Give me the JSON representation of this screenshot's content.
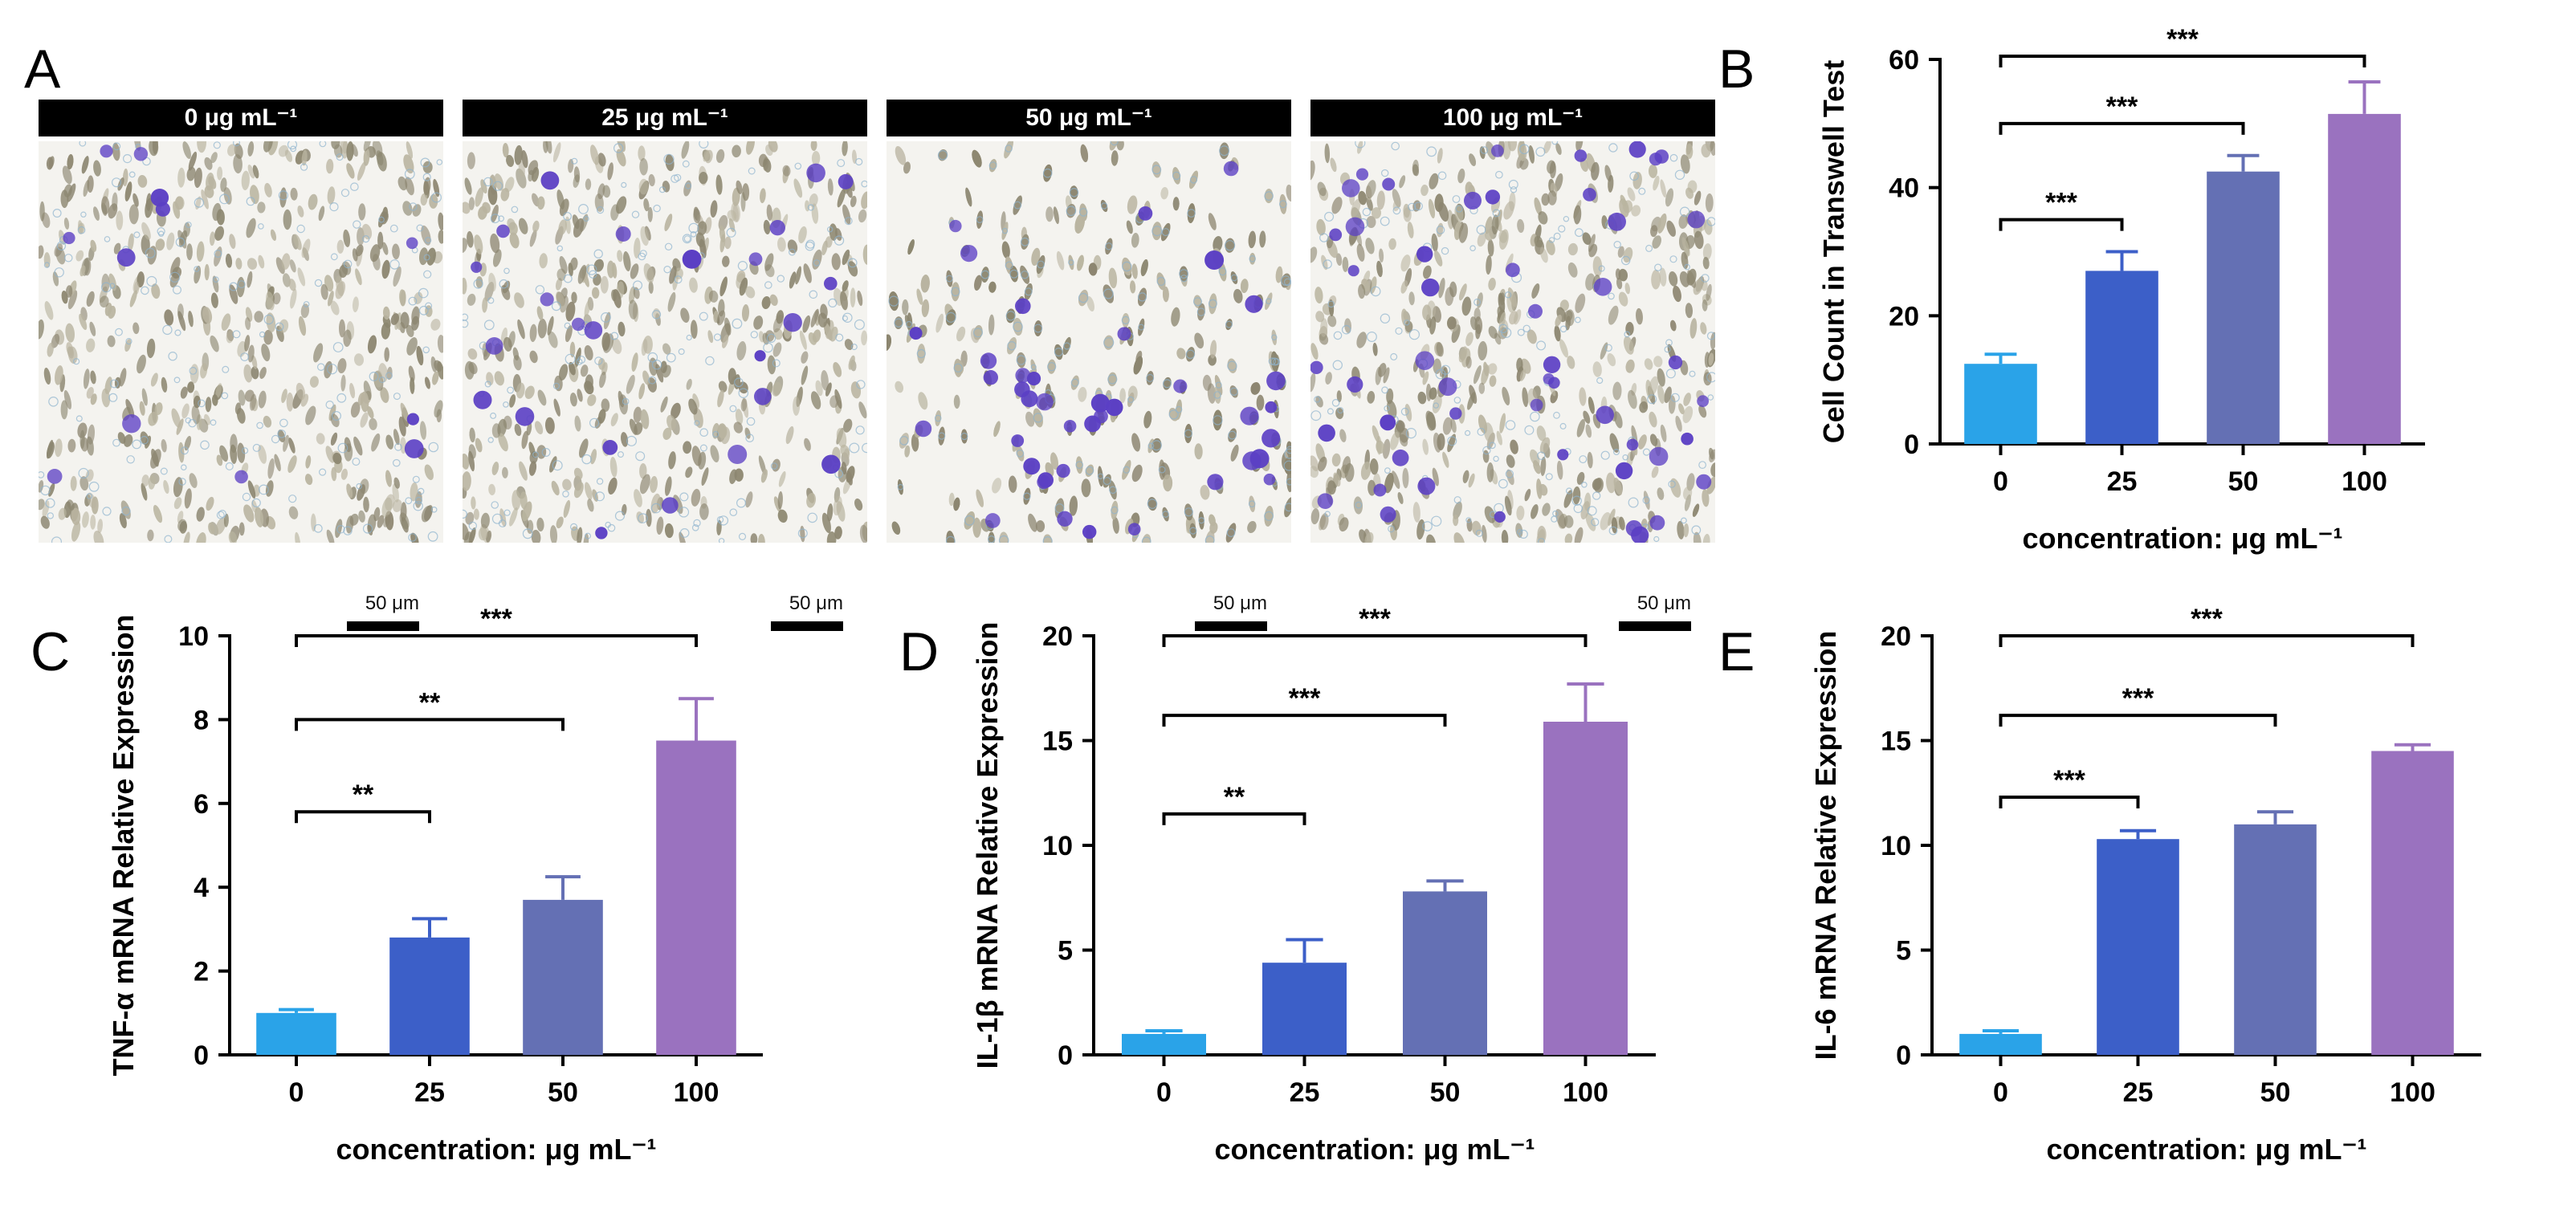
{
  "panels": {
    "A": {
      "letter": "A",
      "headers": [
        "0 μg mL⁻¹",
        "25 μg mL⁻¹",
        "50 μg mL⁻¹",
        "100 μg mL⁻¹"
      ],
      "scalebar": "50 μm"
    },
    "B": {
      "letter": "B"
    },
    "C": {
      "letter": "C"
    },
    "D": {
      "letter": "D"
    },
    "E": {
      "letter": "E"
    }
  },
  "colors": {
    "bar0": "#2aa3e8",
    "bar25": "#3c5fc8",
    "bar50": "#6470b4",
    "bar100": "#9a72bf",
    "cell": "#5b3fc4",
    "debris": "#8c8670"
  },
  "chart_data": [
    {
      "panel": "B",
      "type": "bar",
      "categories": [
        "0",
        "25",
        "50",
        "100"
      ],
      "values": [
        12.5,
        27,
        42.5,
        51.5
      ],
      "errors": [
        1.5,
        3,
        2.5,
        5
      ],
      "xlabel": "concentration: μg mL⁻¹",
      "ylabel": "Cell Count in Transwell Test",
      "ylim": [
        0,
        60
      ],
      "yticks": [
        "0",
        "20",
        "40",
        "60"
      ],
      "brackets": [
        {
          "from": 0,
          "to": 1,
          "y": 35,
          "label": "***"
        },
        {
          "from": 0,
          "to": 2,
          "y": 50,
          "label": "***"
        },
        {
          "from": 0,
          "to": 3,
          "y": 60.5,
          "label": "***"
        }
      ]
    },
    {
      "panel": "C",
      "type": "bar",
      "categories": [
        "0",
        "25",
        "50",
        "100"
      ],
      "values": [
        1.0,
        2.8,
        3.7,
        7.5
      ],
      "errors": [
        0.08,
        0.45,
        0.55,
        1.0
      ],
      "xlabel": "concentration: μg mL⁻¹",
      "ylabel": "TNF-α mRNA Relative Expression",
      "ylim": [
        0,
        10
      ],
      "yticks": [
        "0",
        "2",
        "4",
        "6",
        "8",
        "10"
      ],
      "brackets": [
        {
          "from": 0,
          "to": 1,
          "y": 5.8,
          "label": "**"
        },
        {
          "from": 0,
          "to": 2,
          "y": 8.0,
          "label": "**"
        },
        {
          "from": 0,
          "to": 3,
          "y": 10.0,
          "label": "***"
        }
      ]
    },
    {
      "panel": "D",
      "type": "bar",
      "categories": [
        "0",
        "25",
        "50",
        "100"
      ],
      "values": [
        1.0,
        4.4,
        7.8,
        15.9
      ],
      "errors": [
        0.15,
        1.1,
        0.5,
        1.8
      ],
      "xlabel": "concentration: μg mL⁻¹",
      "ylabel": "IL-1β mRNA Relative Expression",
      "ylim": [
        0,
        20
      ],
      "yticks": [
        "0",
        "5",
        "10",
        "15",
        "20"
      ],
      "brackets": [
        {
          "from": 0,
          "to": 1,
          "y": 11.5,
          "label": "**"
        },
        {
          "from": 0,
          "to": 2,
          "y": 16.2,
          "label": "***"
        },
        {
          "from": 0,
          "to": 3,
          "y": 20.0,
          "label": "***"
        }
      ]
    },
    {
      "panel": "E",
      "type": "bar",
      "categories": [
        "0",
        "25",
        "50",
        "100"
      ],
      "values": [
        1.0,
        10.3,
        11.0,
        14.5
      ],
      "errors": [
        0.15,
        0.4,
        0.6,
        0.3
      ],
      "xlabel": "concentration: μg mL⁻¹",
      "ylabel": "IL-6 mRNA Relative Expression",
      "ylim": [
        0,
        20
      ],
      "yticks": [
        "0",
        "5",
        "10",
        "15",
        "20"
      ],
      "brackets": [
        {
          "from": 0,
          "to": 1,
          "y": 12.3,
          "label": "***"
        },
        {
          "from": 0,
          "to": 2,
          "y": 16.2,
          "label": "***"
        },
        {
          "from": 0,
          "to": 3,
          "y": 20.0,
          "label": "***"
        }
      ]
    }
  ]
}
